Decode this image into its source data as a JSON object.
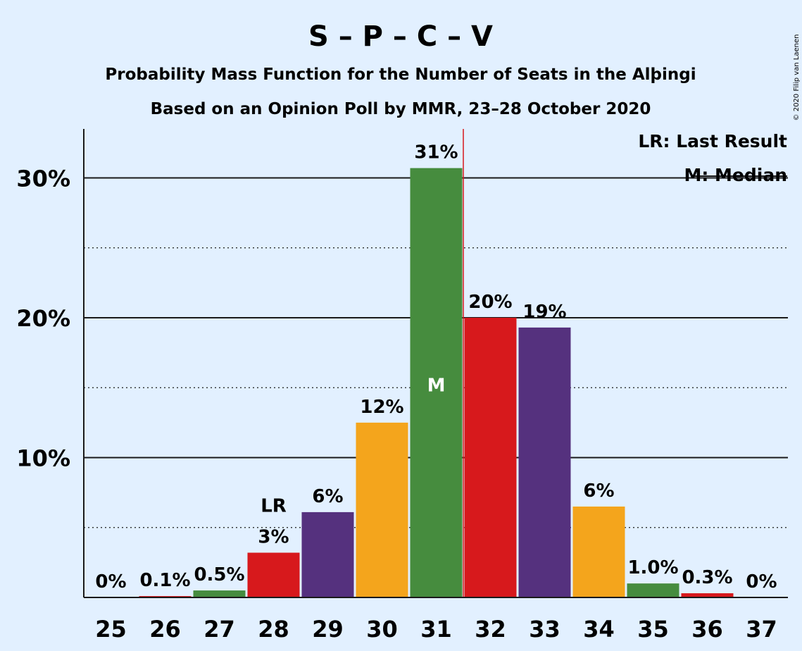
{
  "chart_data": {
    "type": "bar",
    "title": "S – P – C – V",
    "subtitle1": "Probability Mass Function for the Number of Seats in the Alþingi",
    "subtitle2": "Based on an Opinion Poll by MMR, 23–28 October 2020",
    "copyright": "© 2020 Filip van Laenen",
    "categories": [
      "25",
      "26",
      "27",
      "28",
      "29",
      "30",
      "31",
      "32",
      "33",
      "34",
      "35",
      "36",
      "37"
    ],
    "values": [
      0,
      0.1,
      0.5,
      3.2,
      6.1,
      12.5,
      30.7,
      20.0,
      19.3,
      6.5,
      1.0,
      0.3,
      0
    ],
    "data_labels": [
      "0%",
      "0.1%",
      "0.5%",
      "3%",
      "6%",
      "12%",
      "31%",
      "20%",
      "19%",
      "6%",
      "1.0%",
      "0.3%",
      "0%"
    ],
    "bar_colors": [
      "#468c3e",
      "#d7191c",
      "#468c3e",
      "#d7191c",
      "#55317e",
      "#f4a51c",
      "#468c3e",
      "#d7191c",
      "#55317e",
      "#f4a51c",
      "#468c3e",
      "#d7191c",
      "#55317e"
    ],
    "yticks": [
      10,
      20,
      30
    ],
    "ytick_labels": [
      "10%",
      "20%",
      "30%"
    ],
    "ylim": [
      0,
      33.5
    ],
    "minor_gridlines": [
      5,
      15,
      25
    ],
    "last_result_category": "28",
    "last_result_marker": "LR",
    "median_category": "31",
    "median_marker": "M",
    "median_line_color": "#d7191c",
    "legend": [
      "LR: Last Result",
      "M: Median"
    ],
    "legend_position": "top-right"
  }
}
